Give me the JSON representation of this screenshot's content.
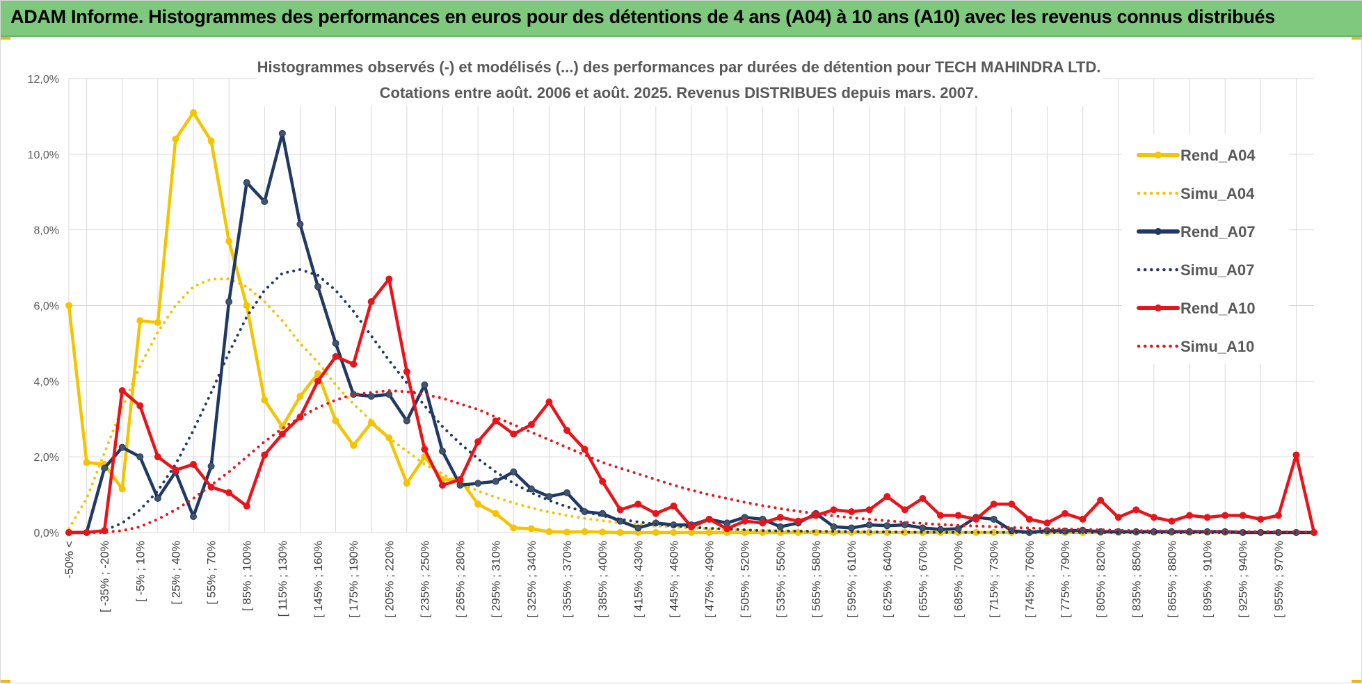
{
  "header": {
    "title": "ADAM Informe. Histogrammes des performances en euros pour des détentions de 4 ans (A04) à 10 ans (A10) avec les revenus connus distribués"
  },
  "chart_data": {
    "type": "line",
    "title": "Histogrammes observés (-) et modélisés (...) des performances par durées de détention pour TECH MAHINDRA LTD.",
    "subtitle": "Cotations entre août. 2006 et août. 2025. Revenus DISTRIBUES depuis mars. 2007.",
    "xlabel": "",
    "ylabel": "",
    "ylim": [
      0,
      12
    ],
    "y_ticks": [
      "0,0%",
      "2,0%",
      "4,0%",
      "6,0%",
      "8,0%",
      "10,0%",
      "12,0%"
    ],
    "grid": true,
    "legend_position": "right",
    "x_tick_labels": [
      "-50% <",
      "[ -35% ; -20%",
      "[ -5% ; 10%",
      "[ 25% ; 40%",
      "[ 55% ; 70%",
      "[ 85% ; 100%",
      "[ 115% ; 130%",
      "[ 145% ; 160%",
      "[ 175% ; 190%",
      "[ 205% ; 220%",
      "[ 235% ; 250%",
      "[ 265% ; 280%",
      "[ 295% ; 310%",
      "[ 325% ; 340%",
      "[ 355% ; 370%",
      "[ 385% ; 400%",
      "[ 415% ; 430%",
      "[ 445% ; 460%",
      "[ 475% ; 490%",
      "[ 505% ; 520%",
      "[ 535% ; 550%",
      "[ 565% ; 580%",
      "[ 595% ; 610%",
      "[ 625% ; 640%",
      "[ 655% ; 670%",
      "[ 685% ; 700%",
      "[ 715% ; 730%",
      "[ 745% ; 760%",
      "[ 775% ; 790%",
      "[ 805% ; 820%",
      "[ 835% ; 850%",
      "[ 865% ; 880%",
      "[ 895% ; 910%",
      "[ 925% ; 940%",
      "[ 955% ; 970%"
    ],
    "series": [
      {
        "name": "Rend_A04",
        "style": "solid",
        "marker": true,
        "color": "#f5c400",
        "values": [
          6.0,
          1.85,
          1.8,
          1.15,
          5.6,
          5.55,
          10.4,
          11.1,
          10.35,
          7.7,
          6.0,
          3.5,
          2.8,
          3.6,
          4.2,
          2.95,
          2.3,
          2.9,
          2.5,
          1.3,
          2.0,
          1.4,
          1.4,
          0.75,
          0.5,
          0.12,
          0.1,
          0.02,
          0.01,
          0.02,
          0.01,
          0,
          0,
          0,
          0,
          0,
          0,
          0,
          0,
          0,
          0,
          0,
          0,
          0,
          0,
          0,
          0,
          0,
          0,
          0,
          0,
          0,
          0,
          0,
          0,
          0,
          0,
          0,
          0,
          0,
          0,
          0,
          0,
          0,
          0,
          0,
          0,
          0,
          0,
          0,
          0
        ]
      },
      {
        "name": "Simu_A04",
        "style": "dotted",
        "marker": false,
        "color": "#f5c400",
        "values": [
          0.1,
          0.9,
          2.1,
          3.3,
          4.4,
          5.3,
          6.0,
          6.5,
          6.7,
          6.7,
          6.5,
          6.1,
          5.6,
          5.0,
          4.5,
          3.9,
          3.4,
          2.95,
          2.5,
          2.15,
          1.8,
          1.55,
          1.3,
          1.1,
          0.93,
          0.78,
          0.65,
          0.54,
          0.45,
          0.37,
          0.31,
          0.26,
          0.21,
          0.17,
          0.14,
          0.12,
          0.1,
          0.08,
          0.06,
          0.05,
          0.04,
          0.035,
          0.03,
          0.025,
          0.02,
          0.015,
          0.012,
          0.01,
          0.008,
          0.006,
          0.005,
          0.004,
          0.003,
          0.003,
          0.002,
          0.002,
          0.001,
          0.001,
          0.001,
          0.001,
          0,
          0,
          0,
          0,
          0,
          0,
          0,
          0,
          0,
          0,
          0
        ]
      },
      {
        "name": "Rend_A07",
        "style": "solid",
        "marker": true,
        "color": "#1f3864",
        "values": [
          0,
          0,
          1.7,
          2.25,
          2.0,
          0.9,
          1.6,
          0.42,
          1.75,
          6.1,
          9.25,
          8.75,
          10.55,
          8.15,
          6.5,
          5.0,
          3.65,
          3.6,
          3.65,
          2.95,
          3.9,
          2.15,
          1.25,
          1.3,
          1.35,
          1.6,
          1.15,
          0.95,
          1.05,
          0.55,
          0.5,
          0.3,
          0.12,
          0.25,
          0.2,
          0.2,
          0.35,
          0.25,
          0.4,
          0.35,
          0.15,
          0.25,
          0.5,
          0.15,
          0.12,
          0.2,
          0.18,
          0.2,
          0.12,
          0.08,
          0.1,
          0.4,
          0.35,
          0.05,
          0,
          0.05,
          0.04,
          0.06,
          0.02,
          0.02,
          0.02,
          0.02,
          0.02,
          0.02,
          0.02,
          0.02,
          0,
          0,
          0,
          0,
          0
        ]
      },
      {
        "name": "Simu_A07",
        "style": "dotted",
        "marker": false,
        "color": "#1f3864",
        "values": [
          0,
          0,
          0.05,
          0.25,
          0.6,
          1.1,
          1.8,
          2.7,
          3.7,
          4.75,
          5.7,
          6.4,
          6.85,
          6.95,
          6.8,
          6.4,
          5.85,
          5.2,
          4.55,
          3.95,
          3.35,
          2.8,
          2.35,
          1.95,
          1.6,
          1.3,
          1.05,
          0.85,
          0.68,
          0.55,
          0.44,
          0.35,
          0.28,
          0.22,
          0.17,
          0.14,
          0.11,
          0.09,
          0.07,
          0.05,
          0.04,
          0.035,
          0.03,
          0.025,
          0.02,
          0.015,
          0.012,
          0.01,
          0.008,
          0.006,
          0.005,
          0.004,
          0.003,
          0.003,
          0.002,
          0.002,
          0.001,
          0.001,
          0.001,
          0.001,
          0,
          0,
          0,
          0,
          0,
          0,
          0,
          0,
          0,
          0,
          0
        ]
      },
      {
        "name": "Rend_A10",
        "style": "solid",
        "marker": true,
        "color": "#e8141b",
        "values": [
          0,
          0,
          0.05,
          3.75,
          3.35,
          2.0,
          1.65,
          1.8,
          1.2,
          1.05,
          0.7,
          2.05,
          2.6,
          3.05,
          4.0,
          4.65,
          4.45,
          6.1,
          6.7,
          4.25,
          2.2,
          1.25,
          1.4,
          2.4,
          2.95,
          2.6,
          2.85,
          3.45,
          2.7,
          2.2,
          1.35,
          0.6,
          0.75,
          0.5,
          0.7,
          0.15,
          0.35,
          0.1,
          0.3,
          0.25,
          0.4,
          0.3,
          0.45,
          0.6,
          0.55,
          0.6,
          0.95,
          0.6,
          0.9,
          0.45,
          0.45,
          0.35,
          0.75,
          0.75,
          0.35,
          0.25,
          0.5,
          0.35,
          0.85,
          0.4,
          0.6,
          0.4,
          0.3,
          0.45,
          0.4,
          0.45,
          0.45,
          0.35,
          0.45,
          2.05,
          0
        ]
      },
      {
        "name": "Simu_A10",
        "style": "dotted",
        "marker": false,
        "color": "#e8141b",
        "values": [
          0,
          0,
          0,
          0.05,
          0.15,
          0.35,
          0.6,
          0.9,
          1.25,
          1.6,
          2.0,
          2.4,
          2.75,
          3.05,
          3.3,
          3.5,
          3.65,
          3.7,
          3.75,
          3.72,
          3.65,
          3.55,
          3.4,
          3.25,
          3.05,
          2.85,
          2.65,
          2.45,
          2.25,
          2.05,
          1.85,
          1.7,
          1.55,
          1.4,
          1.25,
          1.12,
          1.0,
          0.9,
          0.8,
          0.71,
          0.63,
          0.56,
          0.5,
          0.44,
          0.39,
          0.35,
          0.31,
          0.27,
          0.24,
          0.21,
          0.19,
          0.17,
          0.15,
          0.13,
          0.12,
          0.1,
          0.09,
          0.08,
          0.07,
          0.06,
          0.05,
          0.045,
          0.04,
          0.035,
          0.03,
          0.025,
          0.02,
          0.02,
          0.015,
          0.015,
          0.01
        ]
      }
    ]
  }
}
